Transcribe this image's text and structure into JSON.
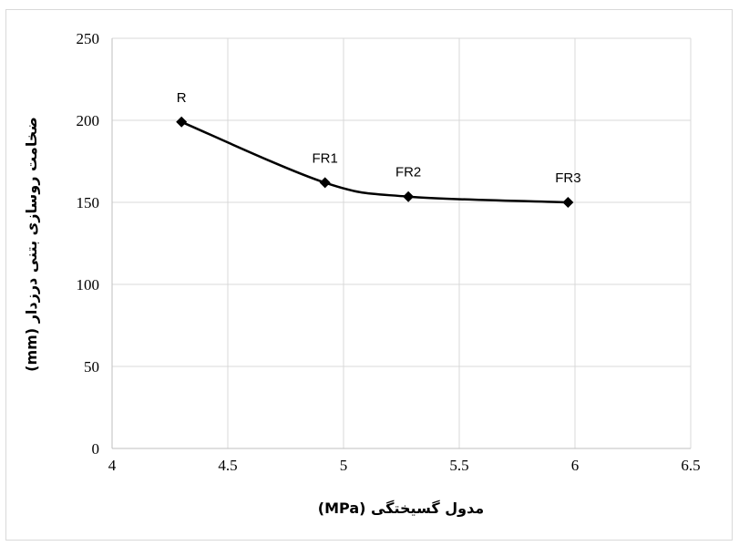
{
  "chart_data": {
    "type": "line",
    "title": "",
    "xlabel": "مدول گسیختگی (MPa)",
    "ylabel": "ضخامت روسازی بتنی درزدار  (mm)",
    "xlim": [
      4,
      6.5
    ],
    "ylim": [
      0,
      250
    ],
    "x_ticks": [
      "4",
      "4.5",
      "5",
      "5.5",
      "6",
      "6.5"
    ],
    "y_ticks": [
      "0",
      "50",
      "100",
      "150",
      "200",
      "250"
    ],
    "grid": true,
    "legend": "none",
    "series": [
      {
        "color": "#000000",
        "marker": "diamond",
        "smooth": true,
        "points": [
          {
            "x": 4.3,
            "y": 199,
            "label": "R"
          },
          {
            "x": 4.92,
            "y": 162,
            "label": "FR1"
          },
          {
            "x": 5.28,
            "y": 153.5,
            "label": "FR2"
          },
          {
            "x": 5.97,
            "y": 150,
            "label": "FR3"
          }
        ]
      }
    ]
  }
}
